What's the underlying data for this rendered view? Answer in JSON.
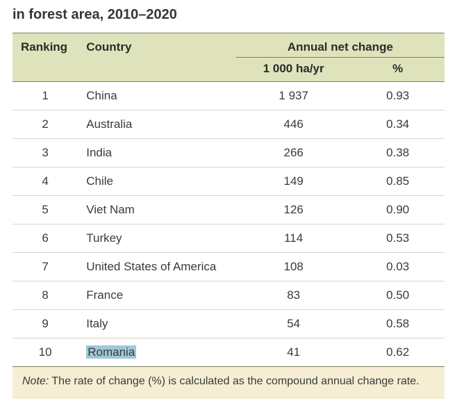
{
  "title": "in forest area, 2010–2020",
  "table": {
    "headers": {
      "ranking": "Ranking",
      "country": "Country",
      "change": "Annual net change",
      "sub_ha": "1 000 ha/yr",
      "sub_pct": "%"
    },
    "rows": [
      {
        "rank": "1",
        "country": "China",
        "ha": "1 937",
        "pct": "0.93"
      },
      {
        "rank": "2",
        "country": "Australia",
        "ha": "446",
        "pct": "0.34"
      },
      {
        "rank": "3",
        "country": "India",
        "ha": "266",
        "pct": "0.38"
      },
      {
        "rank": "4",
        "country": "Chile",
        "ha": "149",
        "pct": "0.85"
      },
      {
        "rank": "5",
        "country": "Viet Nam",
        "ha": "126",
        "pct": "0.90"
      },
      {
        "rank": "6",
        "country": "Turkey",
        "ha": "114",
        "pct": "0.53"
      },
      {
        "rank": "7",
        "country": "United States of America",
        "ha": "108",
        "pct": "0.03"
      },
      {
        "rank": "8",
        "country": "France",
        "ha": "83",
        "pct": "0.50"
      },
      {
        "rank": "9",
        "country": "Italy",
        "ha": "54",
        "pct": "0.58"
      },
      {
        "rank": "10",
        "country": "Romania",
        "ha": "41",
        "pct": "0.62",
        "highlighted": true
      }
    ]
  },
  "note": {
    "label": "Note:",
    "text": " The rate of change (%) is calculated as the compound annual change rate."
  },
  "style": {
    "header_bg": "#dfe3bb",
    "note_bg": "#f6eed3",
    "border_color": "#808066",
    "row_border": "#d5d5c5",
    "highlight_bg": "#9ec8d8",
    "title_fontsize": 20,
    "body_fontsize": 17,
    "note_fontsize": 16
  }
}
